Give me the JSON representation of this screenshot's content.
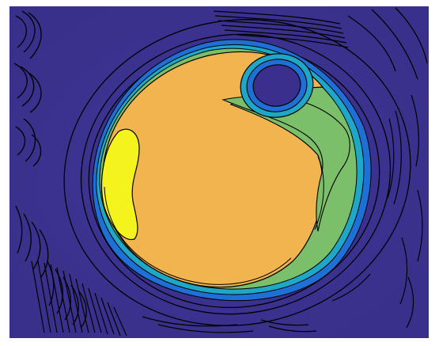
{
  "figure": {
    "description_visible_text": "",
    "colors": {
      "background": "#3b2f8e",
      "disk_core": "#f2b44e",
      "bright_lobe": "#f5f31e",
      "band_green": "#7cbf6a",
      "band_teal": "#1ea7c6",
      "band_blue": "#1e6fd6",
      "contour_line": "#000000",
      "frame": "#ffffff"
    }
  }
}
